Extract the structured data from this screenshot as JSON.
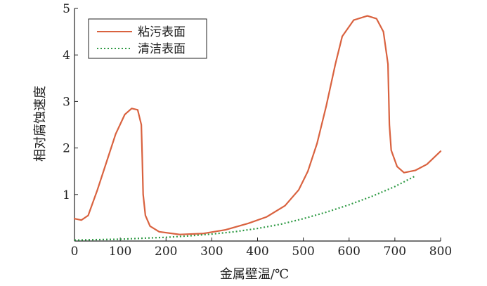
{
  "chart_data": {
    "type": "line",
    "xlabel": "金属壁温/℃",
    "ylabel": "相对腐蚀速度",
    "xlim": [
      0,
      800
    ],
    "ylim": [
      0,
      5
    ],
    "x_ticks": [
      "0",
      "100",
      "200",
      "300",
      "400",
      "500",
      "600",
      "700",
      "800"
    ],
    "y_ticks": [
      "1",
      "2",
      "3",
      "4",
      "5"
    ],
    "grid": false,
    "legend_position": "top-left",
    "series": [
      {
        "name": "粘污表面",
        "color": "#d9623f",
        "style": "solid",
        "points": [
          [
            0,
            0.48
          ],
          [
            15,
            0.45
          ],
          [
            30,
            0.55
          ],
          [
            50,
            1.1
          ],
          [
            70,
            1.7
          ],
          [
            90,
            2.3
          ],
          [
            110,
            2.72
          ],
          [
            125,
            2.85
          ],
          [
            138,
            2.82
          ],
          [
            146,
            2.5
          ],
          [
            148,
            1.8
          ],
          [
            150,
            1.0
          ],
          [
            155,
            0.55
          ],
          [
            165,
            0.32
          ],
          [
            185,
            0.2
          ],
          [
            230,
            0.14
          ],
          [
            280,
            0.16
          ],
          [
            330,
            0.24
          ],
          [
            380,
            0.38
          ],
          [
            420,
            0.52
          ],
          [
            460,
            0.76
          ],
          [
            490,
            1.1
          ],
          [
            510,
            1.5
          ],
          [
            530,
            2.1
          ],
          [
            550,
            2.9
          ],
          [
            570,
            3.8
          ],
          [
            585,
            4.4
          ],
          [
            610,
            4.75
          ],
          [
            640,
            4.84
          ],
          [
            660,
            4.78
          ],
          [
            675,
            4.5
          ],
          [
            685,
            3.8
          ],
          [
            688,
            2.5
          ],
          [
            692,
            1.95
          ],
          [
            705,
            1.6
          ],
          [
            720,
            1.47
          ],
          [
            745,
            1.52
          ],
          [
            770,
            1.65
          ],
          [
            800,
            1.93
          ]
        ]
      },
      {
        "name": "清洁表面",
        "color": "#2e9a44",
        "style": "dotted",
        "points": [
          [
            0,
            0.02
          ],
          [
            50,
            0.03
          ],
          [
            100,
            0.04
          ],
          [
            150,
            0.06
          ],
          [
            200,
            0.08
          ],
          [
            250,
            0.11
          ],
          [
            300,
            0.15
          ],
          [
            350,
            0.2
          ],
          [
            400,
            0.27
          ],
          [
            450,
            0.36
          ],
          [
            500,
            0.48
          ],
          [
            550,
            0.62
          ],
          [
            600,
            0.78
          ],
          [
            650,
            0.96
          ],
          [
            700,
            1.17
          ],
          [
            745,
            1.4
          ]
        ]
      }
    ]
  }
}
